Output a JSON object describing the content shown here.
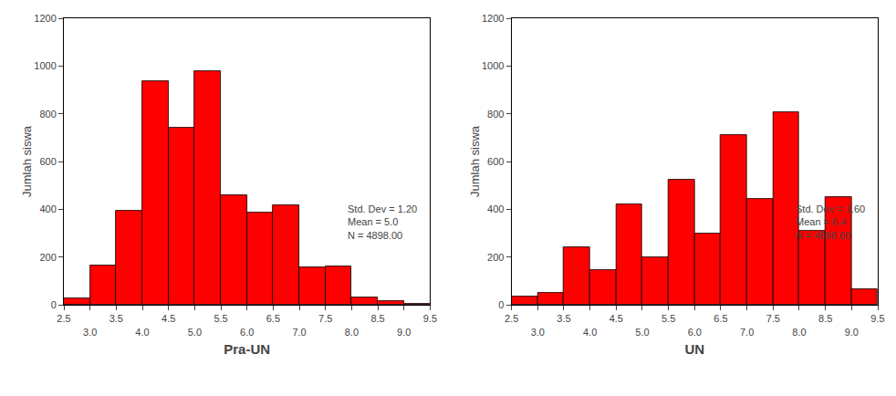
{
  "chart_data": [
    {
      "type": "histogram",
      "bins": [
        2.5,
        3.0,
        3.5,
        4.0,
        4.5,
        5.0,
        5.5,
        6.0,
        6.5,
        7.0,
        7.5,
        8.0,
        8.5,
        9.0,
        9.5
      ],
      "values": [
        25,
        165,
        395,
        935,
        740,
        980,
        460,
        385,
        415,
        155,
        160,
        30,
        15,
        5
      ],
      "color": "#ff0000",
      "xlabel": "Pra-UN",
      "ylabel": "Jumlah siswa",
      "annotation": "Std. Dev = 1.20\nMean = 5.0\nN = 4898.00",
      "xlim": [
        2.5,
        9.5
      ],
      "ylim": [
        0,
        1200
      ],
      "xticks": [
        2.5,
        {
          "value": 3.0,
          "label": "3.0"
        },
        3.5,
        {
          "value": 4.0,
          "label": "4.0"
        },
        4.5,
        {
          "value": 5.0,
          "label": "5.0"
        },
        5.5,
        {
          "value": 6.0,
          "label": "6.0"
        },
        6.5,
        {
          "value": 7.0,
          "label": "7.0"
        },
        7.5,
        {
          "value": 8.0,
          "label": "8.0"
        },
        8.5,
        {
          "value": 9.0,
          "label": "9.0"
        },
        9.5
      ],
      "yticks": [
        0,
        200,
        400,
        600,
        800,
        1000,
        1200
      ],
      "grid": false
    },
    {
      "type": "histogram",
      "bins": [
        2.5,
        3.0,
        3.5,
        4.0,
        4.5,
        5.0,
        5.5,
        6.0,
        6.5,
        7.0,
        7.5,
        8.0,
        8.5,
        9.0,
        9.5
      ],
      "values": [
        35,
        50,
        240,
        145,
        420,
        200,
        525,
        300,
        710,
        445,
        805,
        310,
        450,
        65
      ],
      "color": "#ff0000",
      "xlabel": "UN",
      "ylabel": "Jumlah siswa",
      "annotation": "Std. Dev = 1.60\nMean = 6.4\nN = 4898.00",
      "xlim": [
        2.5,
        9.5
      ],
      "ylim": [
        0,
        1200
      ],
      "xticks": [
        2.5,
        {
          "value": 3.0,
          "label": "3.0"
        },
        3.5,
        {
          "value": 4.0,
          "label": "4.0"
        },
        4.5,
        {
          "value": 5.0,
          "label": "5.0"
        },
        5.5,
        {
          "value": 6.0,
          "label": "6.0"
        },
        6.5,
        {
          "value": 7.0,
          "label": "7.0"
        },
        7.5,
        {
          "value": 8.0,
          "label": "8.0"
        },
        8.5,
        {
          "value": 9.0,
          "label": "9.0"
        },
        9.5
      ],
      "yticks": [
        0,
        200,
        400,
        600,
        800,
        1000,
        1200
      ],
      "grid": false
    }
  ]
}
